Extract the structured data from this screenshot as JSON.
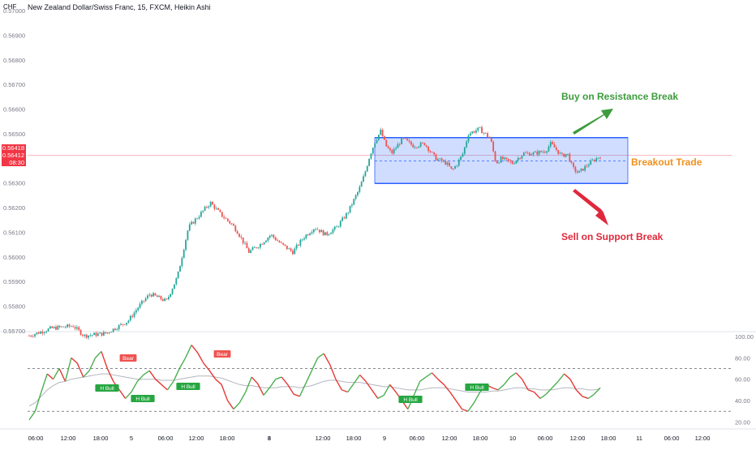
{
  "header": {
    "currency": "CHF",
    "title": "New Zealand Dollar/Swiss Franc, 15, FXCM, Heikin Ashi"
  },
  "price_badge": {
    "price1": "0.56418",
    "price2": "0.56412",
    "countdown": "08:30"
  },
  "colors": {
    "up": "#26a69a",
    "down": "#ef5350",
    "zone": "#2962ff",
    "buy": "#3d9c3d",
    "sell": "#e0283c",
    "trade": "#f0901e"
  },
  "chart_data": [
    {
      "type": "candlestick",
      "chart_style": "Heikin Ashi",
      "y_ticks": [
        "0.57000",
        "0.56900",
        "0.56800",
        "0.56700",
        "0.56600",
        "0.56500",
        "0.56400",
        "0.56300",
        "0.56200",
        "0.56100",
        "0.56000",
        "0.55900",
        "0.55800",
        "0.55700"
      ],
      "ylim": [
        0.557,
        0.57
      ],
      "x_ticks": [
        "06:00",
        "12:00",
        "18:00",
        "5",
        "06:00",
        "12:00",
        "18:00",
        "8",
        "12:00",
        "18:00",
        "9",
        "06:00",
        "12:00",
        "18:00",
        "10",
        "06:00",
        "12:00",
        "18:00",
        "11",
        "06:00",
        "12:00"
      ],
      "current_price": 0.56412,
      "close_path": [
        [
          0,
          0.5568
        ],
        [
          4,
          0.5571
        ],
        [
          8,
          0.5572
        ],
        [
          10,
          0.5568
        ],
        [
          14,
          0.5569
        ],
        [
          18,
          0.5574
        ],
        [
          20,
          0.558
        ],
        [
          22,
          0.5585
        ],
        [
          25,
          0.5582
        ],
        [
          27,
          0.5592
        ],
        [
          29,
          0.5612
        ],
        [
          31,
          0.5617
        ],
        [
          33,
          0.5622
        ],
        [
          35,
          0.5617
        ],
        [
          37,
          0.5613
        ],
        [
          38,
          0.561
        ],
        [
          40,
          0.5602
        ],
        [
          42,
          0.5605
        ],
        [
          44,
          0.5609
        ],
        [
          46,
          0.5605
        ],
        [
          48,
          0.5602
        ],
        [
          50,
          0.5608
        ],
        [
          52,
          0.5612
        ],
        [
          54,
          0.5609
        ],
        [
          56,
          0.5612
        ],
        [
          58,
          0.5618
        ],
        [
          60,
          0.5627
        ],
        [
          61,
          0.5633
        ],
        [
          62,
          0.5641
        ],
        [
          63,
          0.5647
        ],
        [
          64,
          0.5651
        ],
        [
          65,
          0.5645
        ],
        [
          66,
          0.5642
        ],
        [
          67,
          0.5645
        ],
        [
          68,
          0.5648
        ],
        [
          70,
          0.5645
        ],
        [
          72,
          0.5646
        ],
        [
          74,
          0.564
        ],
        [
          76,
          0.5638
        ],
        [
          77,
          0.5635
        ],
        [
          78,
          0.5638
        ],
        [
          79,
          0.5642
        ],
        [
          80,
          0.565
        ],
        [
          82,
          0.5652
        ],
        [
          84,
          0.5648
        ],
        [
          85,
          0.5638
        ],
        [
          86,
          0.564
        ],
        [
          88,
          0.5638
        ],
        [
          90,
          0.5642
        ],
        [
          92,
          0.5642
        ],
        [
          94,
          0.5643
        ],
        [
          95,
          0.5646
        ],
        [
          97,
          0.5641
        ],
        [
          98,
          0.5642
        ],
        [
          99,
          0.5636
        ],
        [
          100,
          0.5634
        ],
        [
          102,
          0.5638
        ],
        [
          104,
          0.5641
        ]
      ],
      "annotations": {
        "zone": {
          "top": 0.56484,
          "bottom": 0.56298,
          "mid": 0.5639
        },
        "buy_label": "Buy on Resistance Break",
        "sell_label": "Sell on Support Break",
        "trade_label": "Breakout Trade"
      }
    },
    {
      "type": "line",
      "name": "oscillator",
      "y_ticks": [
        "100.00",
        "80.00",
        "60.00",
        "40.00",
        "20.00"
      ],
      "ylim": [
        15,
        100
      ],
      "levels": [
        70,
        30
      ],
      "series_main": [
        22,
        30,
        48,
        65,
        60,
        70,
        58,
        80,
        75,
        62,
        68,
        80,
        86,
        70,
        58,
        50,
        42,
        48,
        58,
        64,
        68,
        60,
        55,
        50,
        58,
        70,
        80,
        92,
        85,
        75,
        68,
        60,
        55,
        40,
        32,
        38,
        48,
        62,
        56,
        45,
        52,
        60,
        62,
        55,
        46,
        44,
        56,
        68,
        80,
        84,
        74,
        60,
        50,
        48,
        56,
        64,
        58,
        50,
        42,
        45,
        55,
        48,
        40,
        32,
        45,
        58,
        62,
        66,
        60,
        55,
        48,
        40,
        32,
        30,
        38,
        48,
        55,
        52,
        50,
        55,
        62,
        66,
        60,
        50,
        48,
        42,
        46,
        52,
        58,
        65,
        60,
        50,
        44,
        42,
        46,
        52
      ],
      "series_signal": [
        35,
        38,
        44,
        50,
        54,
        57,
        58,
        60,
        61,
        62,
        63,
        64,
        65,
        65,
        64,
        63,
        62,
        61,
        60,
        60,
        60,
        60,
        59,
        59,
        59,
        60,
        61,
        62,
        63,
        63,
        63,
        62,
        61,
        59,
        57,
        55,
        54,
        54,
        53,
        52,
        52,
        52,
        53,
        53,
        53,
        52,
        53,
        54,
        56,
        58,
        59,
        59,
        58,
        57,
        57,
        57,
        56,
        55,
        54,
        53,
        53,
        52,
        51,
        50,
        50,
        50,
        51,
        52,
        52,
        52,
        51,
        50,
        49,
        48,
        48,
        48,
        48,
        49,
        49,
        50,
        51,
        52,
        52,
        51,
        51,
        50,
        50,
        50,
        51,
        52,
        52,
        51,
        51,
        50,
        50,
        51
      ],
      "labels": [
        "H Bull",
        "H Bull",
        "H Bull",
        "Bear",
        "H Bull",
        "Bear",
        "H Bull",
        "H Bull"
      ]
    }
  ]
}
